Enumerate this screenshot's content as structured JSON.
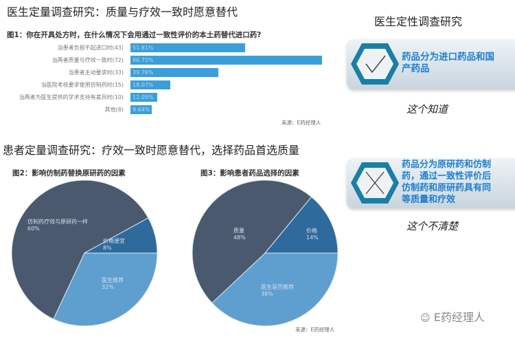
{
  "left": {
    "title1": "医生定量调查研究：质量与疗效一致时愿意替代",
    "title2": "患者定量调查研究：疗效一致时愿意替代，选择药品首选质量"
  },
  "chart_data": [
    {
      "type": "bar",
      "orientation": "horizontal",
      "title": "图1：你在开具处方时，在什么情况下会用通过一致性评价的本土药替代进口药?",
      "categories": [
        "当患者负担不起进口时(43)",
        "当两者质量与疗效一致时(72)",
        "当患者主动要求时(33)",
        "当医院考核要求使用仿制药时(15)",
        "当两者为医生提供的学术支持有差异时(10)",
        "其他(8)"
      ],
      "values": [
        51.81,
        86.75,
        39.76,
        18.07,
        12.05,
        9.64
      ],
      "labels": [
        "51.81%",
        "86.75%",
        "39.76%",
        "18.07%",
        "12.05%",
        "9.64%"
      ],
      "source": "来源：E药经理人",
      "color": "#3a9fd8"
    },
    {
      "type": "pie",
      "title": "图2：影响仿制药替换原研药的因素",
      "slices": [
        {
          "name": "医生推荐",
          "value": 32,
          "label": "32%",
          "color": "#5f9fd0"
        },
        {
          "name": "仿制药疗效与原研药一样",
          "value": 60,
          "label": "60%",
          "color": "#4a596d"
        },
        {
          "name": "价格便宜",
          "value": 8,
          "label": "8%",
          "color": "#2f6a9c"
        }
      ]
    },
    {
      "type": "pie",
      "title": "图3：影响患者药品选择的因素",
      "slices": [
        {
          "name": "医生是否推荐",
          "value": 38,
          "label": "38%",
          "color": "#5f9fd0"
        },
        {
          "name": "质量",
          "value": 48,
          "label": "48%",
          "color": "#4a596d"
        },
        {
          "name": "价格",
          "value": 14,
          "label": "14%",
          "color": "#2f6a9c"
        }
      ],
      "source": "来源：E药经理人"
    }
  ],
  "right": {
    "title": "医生定性调查研究",
    "badge1": {
      "text": "药品分为进口药品和国产药品",
      "icon": "check-icon",
      "note": "这个知道"
    },
    "badge2": {
      "text": "药品分为原研药和仿制药，通过一致性评价后仿制药和原研药具有同等质量和疗效",
      "icon": "cross-icon",
      "note": "这个不清楚"
    }
  },
  "watermark": "E药经理人"
}
